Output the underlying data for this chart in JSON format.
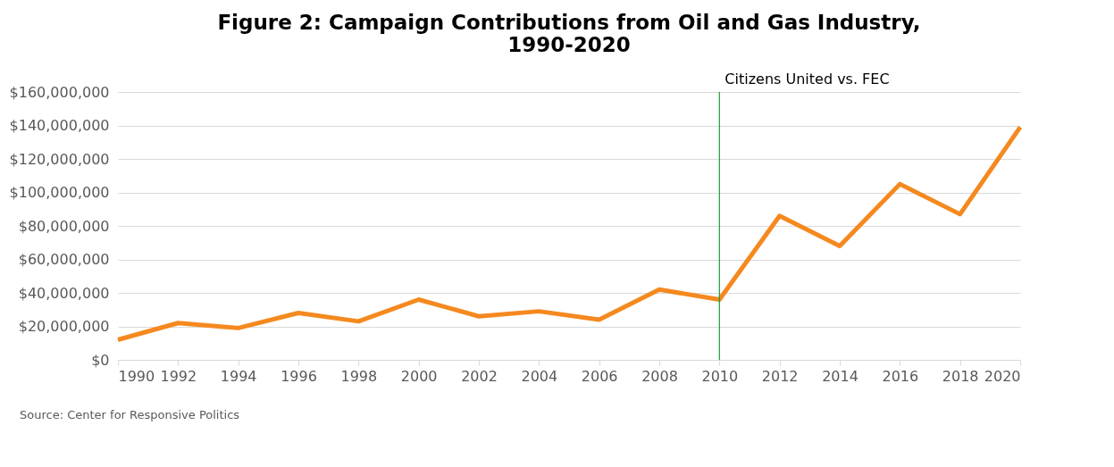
{
  "chart_data": {
    "type": "line",
    "title": "Figure 2: Campaign Contributions from Oil and Gas Industry, 1990-2020",
    "x": [
      1990,
      1992,
      1994,
      1996,
      1998,
      2000,
      2002,
      2004,
      2006,
      2008,
      2010,
      2012,
      2014,
      2016,
      2018,
      2020
    ],
    "series": [
      {
        "color": "#f5891f",
        "values": [
          12000000,
          22000000,
          19000000,
          28000000,
          23000000,
          36000000,
          26000000,
          29000000,
          24000000,
          42000000,
          36000000,
          86000000,
          68000000,
          105000000,
          87000000,
          139000000
        ]
      }
    ],
    "xlim": [
      1990,
      2020
    ],
    "xticks": [
      1990,
      1992,
      1994,
      1996,
      1998,
      2000,
      2002,
      2004,
      2006,
      2008,
      2010,
      2012,
      2014,
      2016,
      2018,
      2020
    ],
    "ylim": [
      0,
      160000000
    ],
    "yticks": [
      {
        "value": 0,
        "label": "$0"
      },
      {
        "value": 20000000,
        "label": "$20,000,000"
      },
      {
        "value": 40000000,
        "label": "$40,000,000"
      },
      {
        "value": 60000000,
        "label": "$60,000,000"
      },
      {
        "value": 80000000,
        "label": "$80,000,000"
      },
      {
        "value": 100000000,
        "label": "$100,000,000"
      },
      {
        "value": 120000000,
        "label": "$120,000,000"
      },
      {
        "value": 140000000,
        "label": "$140,000,000"
      },
      {
        "value": 160000000,
        "label": "$160,000,000"
      }
    ],
    "ref_lines": [
      {
        "axis": "x",
        "value": 2010,
        "label": "Citizens United vs. FEC",
        "color": "#1a9a3a"
      }
    ],
    "annotations": [
      "Source: Center for Responsive Politics"
    ],
    "grid": "y",
    "marker": "none",
    "line_style": "solid"
  }
}
